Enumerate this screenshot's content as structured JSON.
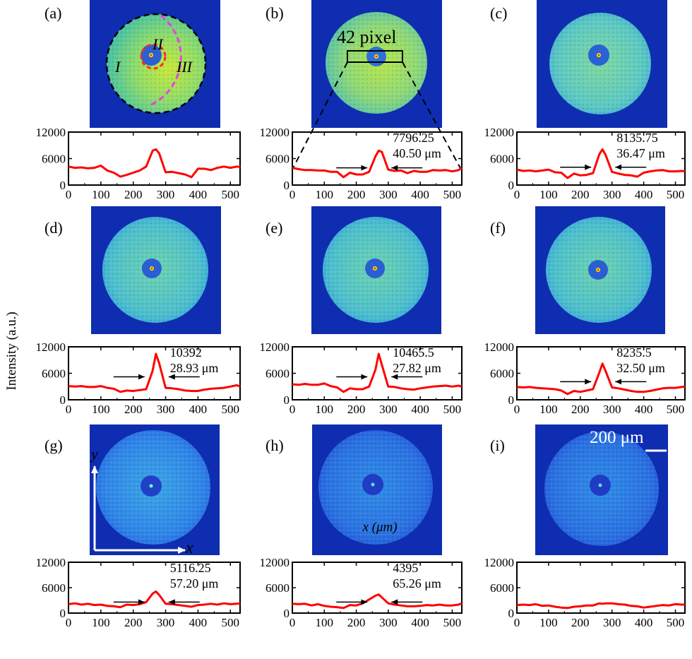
{
  "figure": {
    "y_axis_label": "Intensity (a.u.)",
    "x_axis_label": "x (μm)",
    "scale_bar_label": "200 μm",
    "pixel_box_label": "42 pixel",
    "region_labels": [
      "I",
      "II",
      "III"
    ],
    "axis_arrow_labels": {
      "x": "x",
      "y": "y"
    }
  },
  "chart_data": [
    {
      "panel": "(a)",
      "type": "line",
      "x": [
        0,
        20,
        40,
        60,
        80,
        100,
        120,
        140,
        160,
        180,
        200,
        220,
        240,
        260,
        270,
        280,
        300,
        320,
        340,
        360,
        380,
        400,
        420,
        440,
        460,
        480,
        500,
        520,
        530
      ],
      "values": [
        4200,
        3900,
        4000,
        3800,
        3900,
        4400,
        3300,
        2800,
        1900,
        2300,
        2800,
        3300,
        4200,
        7800,
        8100,
        7200,
        2900,
        3000,
        2700,
        2400,
        1800,
        3700,
        3700,
        3400,
        3900,
        4200,
        3900,
        4200,
        4100
      ],
      "xlim": [
        0,
        530
      ],
      "ylim": [
        0,
        12000
      ],
      "xticks": [
        0,
        100,
        200,
        300,
        400,
        500
      ],
      "yticks": [
        0,
        6000,
        12000
      ],
      "peak_label": "",
      "fwhm_label": "",
      "color": "#ff0000"
    },
    {
      "panel": "(b)",
      "type": "line",
      "x": [
        0,
        20,
        40,
        60,
        80,
        100,
        120,
        140,
        160,
        180,
        200,
        220,
        240,
        260,
        270,
        280,
        300,
        320,
        340,
        360,
        380,
        400,
        420,
        440,
        460,
        480,
        500,
        520,
        530
      ],
      "values": [
        3900,
        3600,
        3400,
        3400,
        3300,
        3300,
        3000,
        3000,
        1800,
        2800,
        2400,
        2400,
        3000,
        6500,
        7800,
        7500,
        3500,
        3200,
        3300,
        2700,
        3200,
        3000,
        3000,
        3400,
        3300,
        3400,
        3100,
        3400,
        3900
      ],
      "xlim": [
        0,
        530
      ],
      "ylim": [
        0,
        12000
      ],
      "xticks": [
        0,
        100,
        200,
        300,
        400,
        500
      ],
      "yticks": [
        0,
        6000,
        12000
      ],
      "peak_label": "7796.25",
      "fwhm_label": "40.50 μm",
      "color": "#ff0000"
    },
    {
      "panel": "(c)",
      "type": "line",
      "x": [
        0,
        20,
        40,
        60,
        80,
        100,
        120,
        140,
        160,
        180,
        200,
        220,
        240,
        260,
        270,
        280,
        300,
        320,
        340,
        360,
        380,
        400,
        420,
        440,
        460,
        480,
        500,
        520,
        530
      ],
      "values": [
        3500,
        3200,
        3300,
        3100,
        3300,
        3500,
        2900,
        2800,
        1600,
        2600,
        2200,
        2300,
        2700,
        7000,
        8100,
        6800,
        3000,
        2600,
        2300,
        2200,
        1900,
        2800,
        3100,
        3300,
        3400,
        3100,
        3100,
        3200,
        3100
      ],
      "xlim": [
        0,
        530
      ],
      "ylim": [
        0,
        12000
      ],
      "xticks": [
        0,
        100,
        200,
        300,
        400,
        500
      ],
      "yticks": [
        0,
        6000,
        12000
      ],
      "peak_label": "8135.75",
      "fwhm_label": "36.47 μm",
      "color": "#ff0000"
    },
    {
      "panel": "(d)",
      "type": "line",
      "x": [
        0,
        20,
        40,
        60,
        80,
        100,
        120,
        140,
        160,
        180,
        200,
        220,
        240,
        260,
        270,
        280,
        300,
        320,
        340,
        360,
        380,
        400,
        420,
        440,
        460,
        480,
        500,
        520,
        530
      ],
      "values": [
        3100,
        3000,
        3100,
        2900,
        2900,
        3100,
        2700,
        2500,
        1800,
        2100,
        2000,
        2200,
        2400,
        6600,
        10400,
        8300,
        2700,
        2600,
        2400,
        2100,
        2000,
        2000,
        2300,
        2500,
        2600,
        2700,
        3000,
        3300,
        3000
      ],
      "xlim": [
        0,
        530
      ],
      "ylim": [
        0,
        12000
      ],
      "xticks": [
        0,
        100,
        200,
        300,
        400,
        500
      ],
      "yticks": [
        0,
        6000,
        12000
      ],
      "peak_label": "10392",
      "fwhm_label": "28.93 μm",
      "color": "#ff0000"
    },
    {
      "panel": "(e)",
      "type": "line",
      "x": [
        0,
        20,
        40,
        60,
        80,
        100,
        120,
        140,
        160,
        180,
        200,
        220,
        240,
        260,
        270,
        280,
        300,
        320,
        340,
        360,
        380,
        400,
        420,
        440,
        460,
        480,
        500,
        520,
        530
      ],
      "values": [
        3500,
        3400,
        3600,
        3400,
        3400,
        3700,
        3100,
        2800,
        1800,
        2600,
        2400,
        2400,
        3000,
        6800,
        10400,
        7900,
        3000,
        2900,
        2600,
        2400,
        2300,
        2600,
        2800,
        3000,
        3100,
        3200,
        3000,
        3200,
        3000
      ],
      "xlim": [
        0,
        530
      ],
      "ylim": [
        0,
        12000
      ],
      "xticks": [
        0,
        100,
        200,
        300,
        400,
        500
      ],
      "yticks": [
        0,
        6000,
        12000
      ],
      "peak_label": "10465.5",
      "fwhm_label": "27.82 μm",
      "color": "#ff0000"
    },
    {
      "panel": "(f)",
      "type": "line",
      "x": [
        0,
        20,
        40,
        60,
        80,
        100,
        120,
        140,
        160,
        180,
        200,
        220,
        240,
        260,
        270,
        280,
        300,
        320,
        340,
        360,
        380,
        400,
        420,
        440,
        460,
        480,
        500,
        520,
        530
      ],
      "values": [
        2900,
        2800,
        2900,
        2700,
        2600,
        2500,
        2400,
        2100,
        1300,
        2000,
        1800,
        2100,
        2400,
        6200,
        8200,
        6500,
        2800,
        2600,
        2300,
        2000,
        1800,
        1800,
        2000,
        2300,
        2600,
        2700,
        2700,
        2900,
        3000
      ],
      "xlim": [
        0,
        530
      ],
      "ylim": [
        0,
        12000
      ],
      "xticks": [
        0,
        100,
        200,
        300,
        400,
        500
      ],
      "yticks": [
        0,
        6000,
        12000
      ],
      "peak_label": "8235.5",
      "fwhm_label": "32.50 μm",
      "color": "#ff0000"
    },
    {
      "panel": "(g)",
      "type": "line",
      "x": [
        0,
        20,
        40,
        60,
        80,
        100,
        120,
        140,
        160,
        180,
        200,
        220,
        240,
        260,
        270,
        280,
        300,
        320,
        340,
        360,
        380,
        400,
        420,
        440,
        460,
        480,
        500,
        520,
        530
      ],
      "values": [
        2100,
        2300,
        2000,
        2200,
        1900,
        2000,
        1700,
        1600,
        1400,
        2000,
        1900,
        2100,
        2600,
        4600,
        5100,
        4300,
        2200,
        2100,
        1900,
        1700,
        1500,
        1900,
        2000,
        2200,
        2000,
        2300,
        2100,
        2200,
        2300
      ],
      "xlim": [
        0,
        530
      ],
      "ylim": [
        0,
        12000
      ],
      "xticks": [
        0,
        100,
        200,
        300,
        400,
        500
      ],
      "yticks": [
        0,
        6000,
        12000
      ],
      "peak_label": "5116.25",
      "fwhm_label": "57.20 μm",
      "color": "#ff0000"
    },
    {
      "panel": "(h)",
      "type": "line",
      "x": [
        0,
        20,
        40,
        60,
        80,
        100,
        120,
        140,
        160,
        180,
        200,
        220,
        240,
        260,
        270,
        280,
        300,
        320,
        340,
        360,
        380,
        400,
        420,
        440,
        460,
        480,
        500,
        520,
        530
      ],
      "values": [
        2200,
        2100,
        2200,
        1800,
        2100,
        1700,
        1500,
        1400,
        1200,
        1900,
        1800,
        2300,
        3200,
        4100,
        4400,
        3700,
        2300,
        2000,
        1800,
        1600,
        1600,
        1700,
        1900,
        1800,
        2000,
        1800,
        1800,
        2000,
        2300
      ],
      "xlim": [
        0,
        530
      ],
      "ylim": [
        0,
        12000
      ],
      "xticks": [
        0,
        100,
        200,
        300,
        400,
        500
      ],
      "yticks": [
        0,
        6000,
        12000
      ],
      "peak_label": "4395",
      "fwhm_label": "65.26 μm",
      "color": "#ff0000"
    },
    {
      "panel": "(i)",
      "type": "line",
      "x": [
        0,
        20,
        40,
        60,
        80,
        100,
        120,
        140,
        160,
        180,
        200,
        220,
        240,
        260,
        270,
        280,
        300,
        320,
        340,
        360,
        380,
        400,
        420,
        440,
        460,
        480,
        500,
        520,
        530
      ],
      "values": [
        1900,
        2000,
        1900,
        2100,
        1700,
        1800,
        1500,
        1300,
        1200,
        1500,
        1600,
        1800,
        1800,
        2300,
        2200,
        2300,
        2300,
        2100,
        2000,
        1700,
        1600,
        1300,
        1500,
        1700,
        1900,
        1800,
        2100,
        2000,
        2000
      ],
      "xlim": [
        0,
        530
      ],
      "ylim": [
        0,
        12000
      ],
      "xticks": [
        0,
        100,
        200,
        300,
        400,
        500
      ],
      "yticks": [
        0,
        6000,
        12000
      ],
      "peak_label": "",
      "fwhm_label": "",
      "color": "#ff0000"
    }
  ]
}
